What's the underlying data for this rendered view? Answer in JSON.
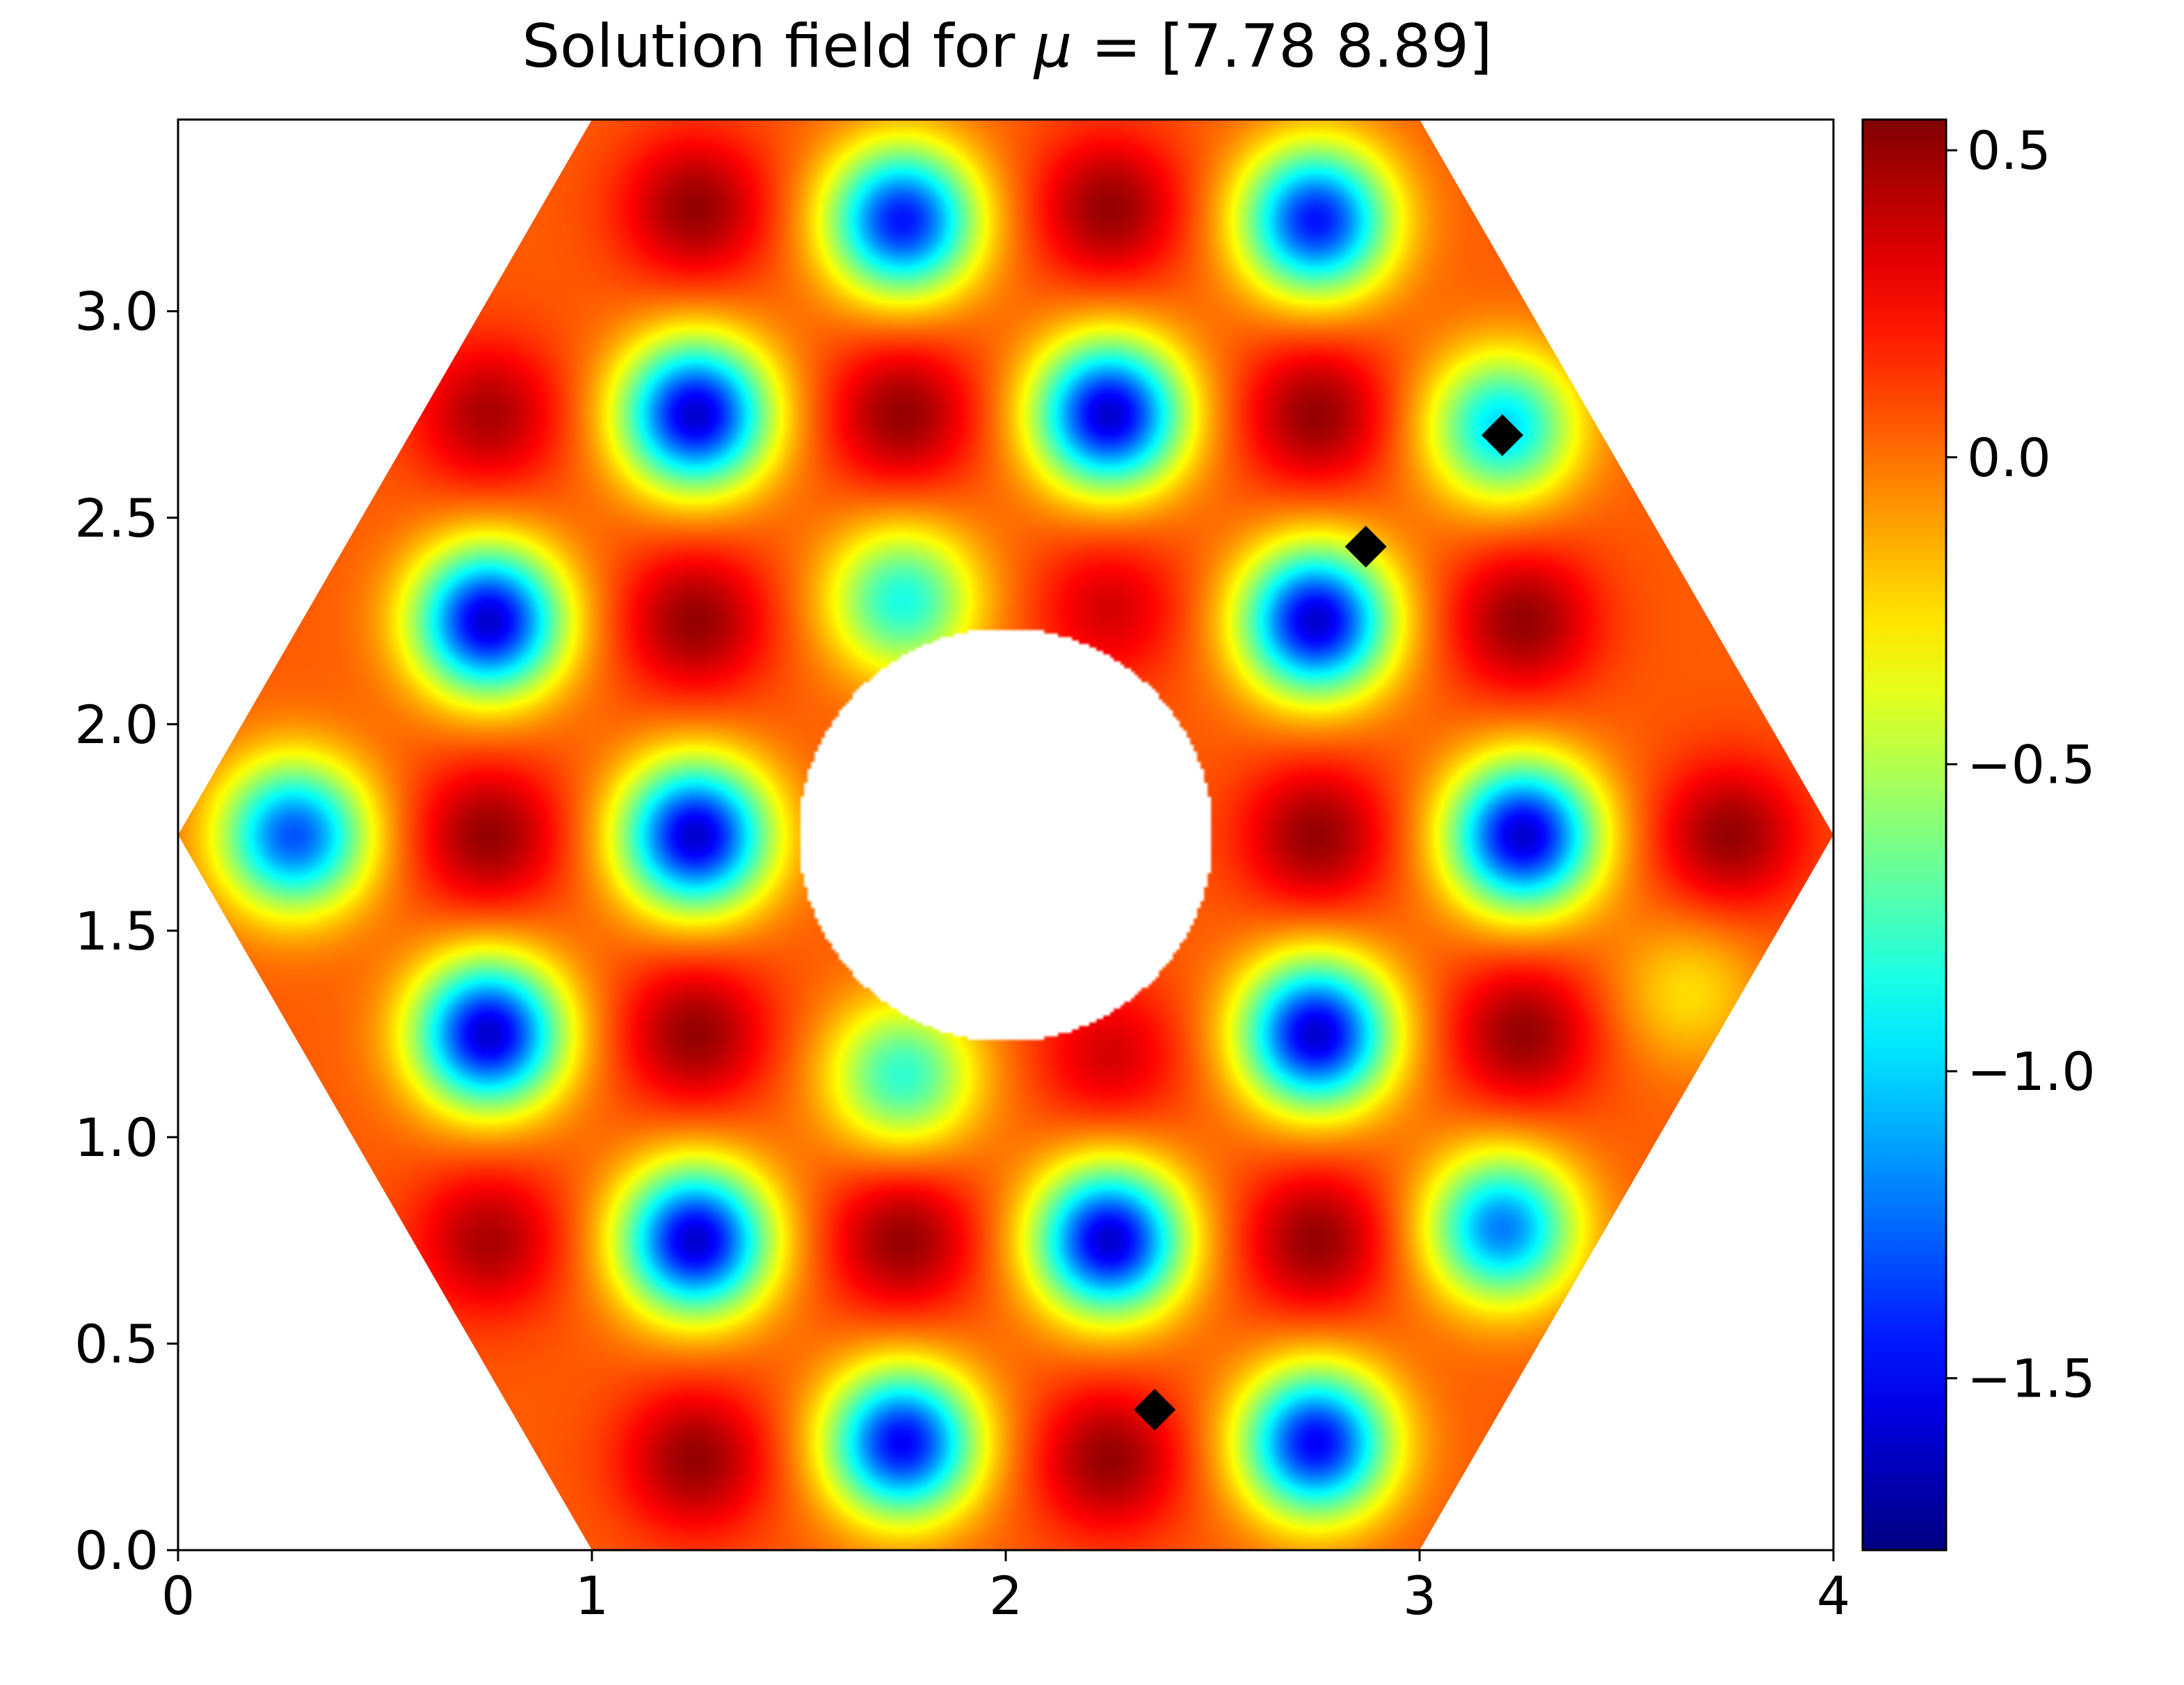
{
  "chart_data": {
    "type": "heatmap",
    "title": "Solution field for μ = [7.78 8.89]",
    "title_prefix": "Solution field for ",
    "title_symbol": "μ",
    "title_suffix": " = [7.78 8.89]",
    "xlabel": "",
    "ylabel": "",
    "xlim": [
      0,
      4
    ],
    "ylim": [
      0,
      3.4641
    ],
    "xticks": [
      0,
      1,
      2,
      3,
      4
    ],
    "xtick_labels": [
      "0",
      "1",
      "2",
      "3",
      "4"
    ],
    "yticks": [
      0.0,
      0.5,
      1.0,
      1.5,
      2.0,
      2.5,
      3.0
    ],
    "ytick_labels": [
      "0.0",
      "0.5",
      "1.0",
      "1.5",
      "2.0",
      "2.5",
      "3.0"
    ],
    "colormap": "jet",
    "colorbar": {
      "min": -1.78,
      "max": 0.55,
      "ticks": [
        0.5,
        0.0,
        -0.5,
        -1.0,
        -1.5
      ],
      "tick_labels": [
        "0.5",
        "0.0",
        "−0.5",
        "−1.0",
        "−1.5"
      ]
    },
    "domain": {
      "shape": "hexagon",
      "vertices": [
        [
          1,
          0
        ],
        [
          3,
          0
        ],
        [
          4,
          1.7321
        ],
        [
          3,
          3.4641
        ],
        [
          1,
          3.4641
        ],
        [
          0,
          1.7321
        ]
      ],
      "hole_center": [
        2.0,
        1.7321
      ],
      "hole_radius": 0.5
    },
    "field_extrema": [
      {
        "x": 1.25,
        "y": 3.25,
        "v": 0.5
      },
      {
        "x": 1.75,
        "y": 3.22,
        "v": -1.45
      },
      {
        "x": 2.25,
        "y": 3.25,
        "v": 0.5
      },
      {
        "x": 2.75,
        "y": 3.22,
        "v": -1.45
      },
      {
        "x": 0.75,
        "y": 2.75,
        "v": 0.45
      },
      {
        "x": 1.25,
        "y": 2.75,
        "v": -1.6
      },
      {
        "x": 1.75,
        "y": 2.75,
        "v": 0.5
      },
      {
        "x": 2.25,
        "y": 2.75,
        "v": -1.6
      },
      {
        "x": 2.75,
        "y": 2.75,
        "v": 0.5
      },
      {
        "x": 3.2,
        "y": 2.72,
        "v": -1.0
      },
      {
        "x": 0.75,
        "y": 2.25,
        "v": -1.6
      },
      {
        "x": 1.25,
        "y": 2.25,
        "v": 0.5
      },
      {
        "x": 1.75,
        "y": 2.3,
        "v": -0.85
      },
      {
        "x": 2.25,
        "y": 2.28,
        "v": 0.35
      },
      {
        "x": 2.75,
        "y": 2.25,
        "v": -1.6
      },
      {
        "x": 3.25,
        "y": 2.25,
        "v": 0.5
      },
      {
        "x": 0.28,
        "y": 1.73,
        "v": -1.3
      },
      {
        "x": 0.75,
        "y": 1.73,
        "v": 0.5
      },
      {
        "x": 1.25,
        "y": 1.73,
        "v": -1.6
      },
      {
        "x": 2.75,
        "y": 1.73,
        "v": 0.5
      },
      {
        "x": 3.25,
        "y": 1.73,
        "v": -1.6
      },
      {
        "x": 3.75,
        "y": 1.73,
        "v": 0.5
      },
      {
        "x": 0.75,
        "y": 1.25,
        "v": -1.6
      },
      {
        "x": 1.25,
        "y": 1.25,
        "v": 0.5
      },
      {
        "x": 1.75,
        "y": 1.15,
        "v": -0.8
      },
      {
        "x": 2.25,
        "y": 1.2,
        "v": 0.35
      },
      {
        "x": 2.75,
        "y": 1.25,
        "v": -1.6
      },
      {
        "x": 3.25,
        "y": 1.25,
        "v": 0.5
      },
      {
        "x": 3.65,
        "y": 1.35,
        "v": -0.25
      },
      {
        "x": 0.75,
        "y": 0.75,
        "v": 0.45
      },
      {
        "x": 1.25,
        "y": 0.75,
        "v": -1.6
      },
      {
        "x": 1.75,
        "y": 0.75,
        "v": 0.5
      },
      {
        "x": 2.25,
        "y": 0.75,
        "v": -1.6
      },
      {
        "x": 2.75,
        "y": 0.75,
        "v": 0.5
      },
      {
        "x": 3.2,
        "y": 0.78,
        "v": -1.2
      },
      {
        "x": 1.25,
        "y": 0.22,
        "v": 0.5
      },
      {
        "x": 1.75,
        "y": 0.26,
        "v": -1.5
      },
      {
        "x": 2.25,
        "y": 0.22,
        "v": 0.5
      },
      {
        "x": 2.75,
        "y": 0.26,
        "v": -1.5
      }
    ],
    "markers": [
      {
        "x": 3.2,
        "y": 2.7
      },
      {
        "x": 2.87,
        "y": 2.43
      },
      {
        "x": 2.36,
        "y": 0.34
      }
    ]
  }
}
